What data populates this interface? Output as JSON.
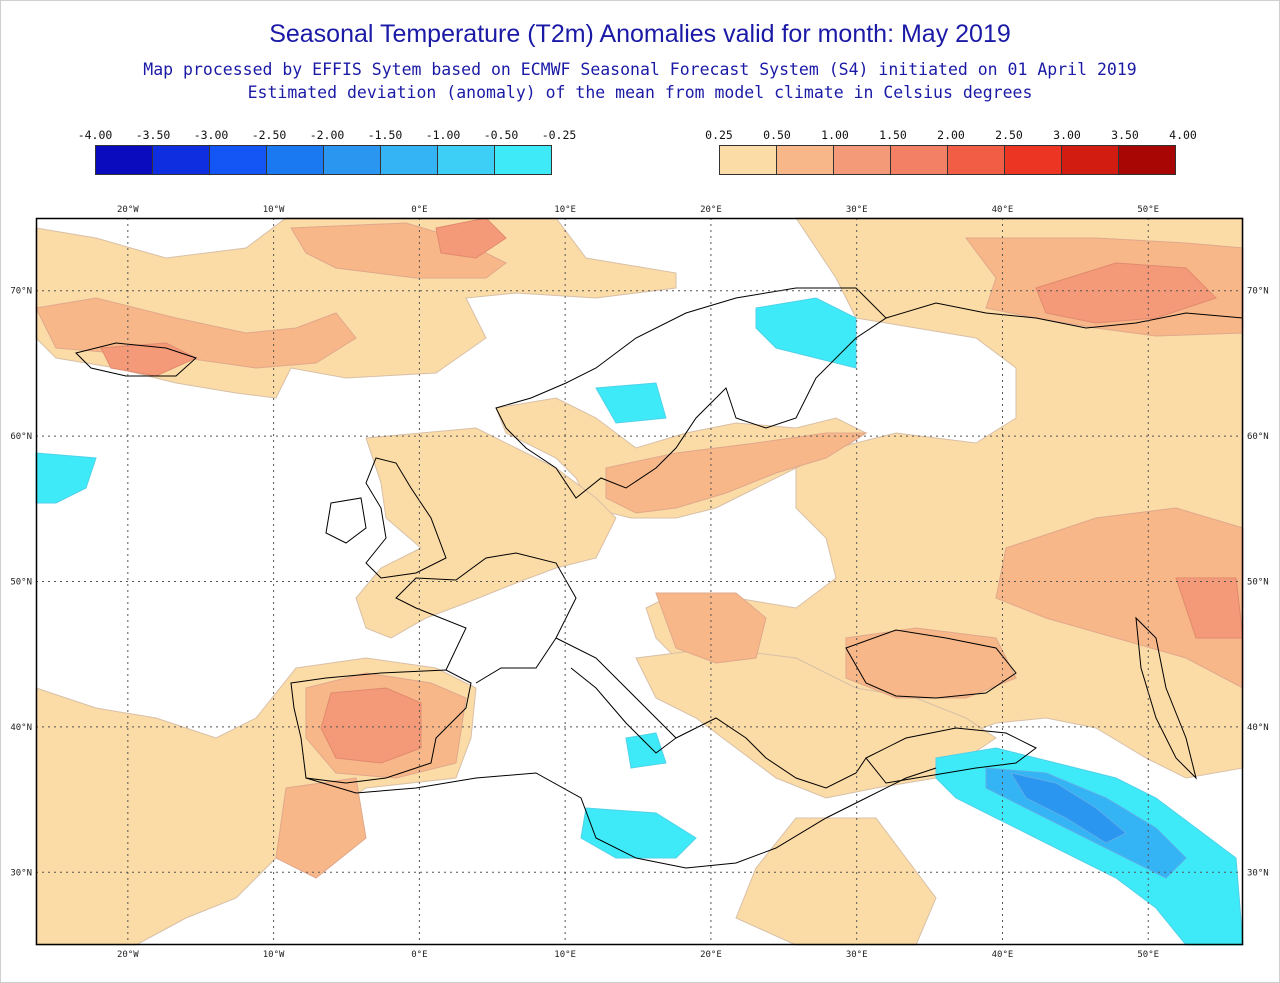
{
  "title": "Seasonal Temperature (T2m) Anomalies valid for month: May 2019",
  "subtitle1": "Map processed by EFFIS Sytem based on ECMWF Seasonal Forecast System (S4) initiated on 01 April 2019",
  "subtitle2": "Estimated deviation (anomaly) of the mean from model climate in Celsius degrees",
  "legend_cold": {
    "labels": [
      "-4.00",
      "-3.50",
      "-3.00",
      "-2.50",
      "-2.00",
      "-1.50",
      "-1.00",
      "-0.50",
      "-0.25"
    ],
    "colors": [
      "#0a0abe",
      "#0f2ee0",
      "#1456f5",
      "#1a78f0",
      "#2a96f0",
      "#35b4f5",
      "#3dcff5",
      "#3eeaf7"
    ]
  },
  "legend_warm": {
    "labels": [
      "0.25",
      "0.50",
      "1.00",
      "1.50",
      "2.00",
      "2.50",
      "3.00",
      "3.50",
      "4.00"
    ],
    "colors": [
      "#fbdba6",
      "#f8b788",
      "#f59a78",
      "#f38064",
      "#f25d45",
      "#ec3523",
      "#d21c12",
      "#a80604"
    ]
  },
  "map": {
    "lon_ticks": [
      "20°W",
      "10°W",
      "0°E",
      "10°E",
      "20°E",
      "30°E",
      "40°E",
      "50°E"
    ],
    "lat_ticks": [
      "70°N",
      "60°N",
      "50°N",
      "40°N",
      "30°N"
    ],
    "extent": {
      "lon": [
        -26.3,
        56.5
      ],
      "lat": [
        25,
        75
      ]
    }
  }
}
